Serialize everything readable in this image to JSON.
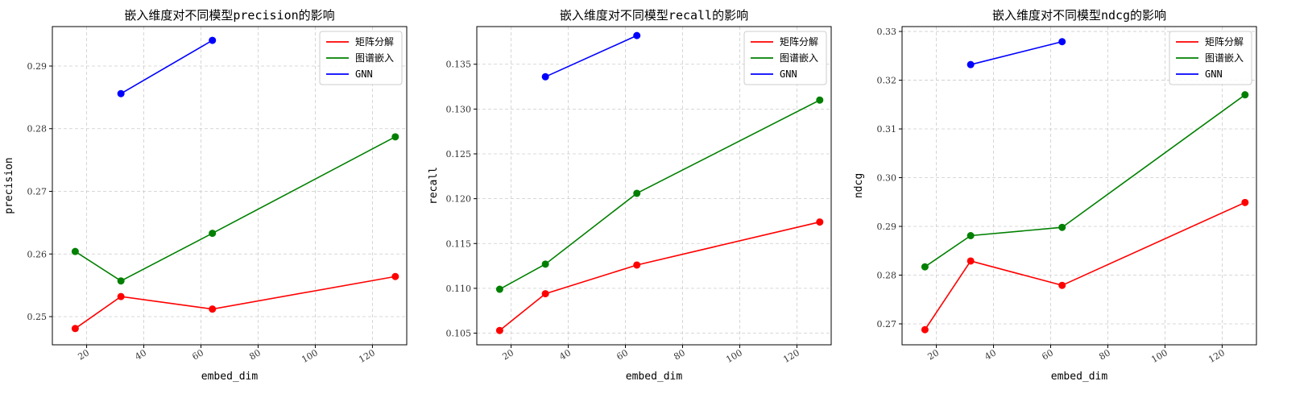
{
  "chart_data": [
    {
      "type": "line",
      "title": "嵌入维度对不同模型precision的影响",
      "xlabel": "embed_dim",
      "ylabel": "precision",
      "xlim": [
        8,
        132
      ],
      "ylim": [
        0.2455,
        0.2963
      ],
      "xticks": [
        20,
        40,
        60,
        80,
        100,
        120
      ],
      "xtick_labels": [
        "20",
        "40",
        "60",
        "80",
        "100",
        "120"
      ],
      "yticks": [
        0.25,
        0.26,
        0.27,
        0.28,
        0.29
      ],
      "ytick_labels": [
        "0.25",
        "0.26",
        "0.27",
        "0.28",
        "0.29"
      ],
      "grid": true,
      "legend": "top-right",
      "series": [
        {
          "name": "矩阵分解",
          "color": "#ff0000",
          "x": [
            16,
            32,
            64,
            128
          ],
          "y": [
            0.2481,
            0.2532,
            0.2512,
            0.2564
          ]
        },
        {
          "name": "图谱嵌入",
          "color": "#008000",
          "x": [
            16,
            32,
            64,
            128
          ],
          "y": [
            0.2604,
            0.2557,
            0.2633,
            0.2787
          ]
        },
        {
          "name": "GNN",
          "color": "#0000ff",
          "x": [
            32,
            64
          ],
          "y": [
            0.2856,
            0.2941
          ]
        }
      ]
    },
    {
      "type": "line",
      "title": "嵌入维度对不同模型recall的影响",
      "xlabel": "embed_dim",
      "ylabel": "recall",
      "xlim": [
        8,
        132
      ],
      "ylim": [
        0.1037,
        0.1392
      ],
      "xticks": [
        20,
        40,
        60,
        80,
        100,
        120
      ],
      "xtick_labels": [
        "20",
        "40",
        "60",
        "80",
        "100",
        "120"
      ],
      "yticks": [
        0.105,
        0.11,
        0.115,
        0.12,
        0.125,
        0.13,
        0.135
      ],
      "ytick_labels": [
        "0.105",
        "0.110",
        "0.115",
        "0.120",
        "0.125",
        "0.130",
        "0.135"
      ],
      "grid": true,
      "legend": "top-right",
      "series": [
        {
          "name": "矩阵分解",
          "color": "#ff0000",
          "x": [
            16,
            32,
            64,
            128
          ],
          "y": [
            0.1053,
            0.1094,
            0.1126,
            0.1174
          ]
        },
        {
          "name": "图谱嵌入",
          "color": "#008000",
          "x": [
            16,
            32,
            64,
            128
          ],
          "y": [
            0.1099,
            0.1127,
            0.1206,
            0.131
          ]
        },
        {
          "name": "GNN",
          "color": "#0000ff",
          "x": [
            32,
            64
          ],
          "y": [
            0.1336,
            0.1382
          ]
        }
      ]
    },
    {
      "type": "line",
      "title": "嵌入维度对不同模型ndcg的影响",
      "xlabel": "embed_dim",
      "ylabel": "ndcg",
      "xlim": [
        8,
        132
      ],
      "ylim": [
        0.2657,
        0.331
      ],
      "xticks": [
        20,
        40,
        60,
        80,
        100,
        120
      ],
      "xtick_labels": [
        "20",
        "40",
        "60",
        "80",
        "100",
        "120"
      ],
      "yticks": [
        0.27,
        0.28,
        0.29,
        0.3,
        0.31,
        0.32,
        0.33
      ],
      "ytick_labels": [
        "0.27",
        "0.28",
        "0.29",
        "0.30",
        "0.31",
        "0.32",
        "0.33"
      ],
      "grid": true,
      "legend": "top-right",
      "series": [
        {
          "name": "矩阵分解",
          "color": "#ff0000",
          "x": [
            16,
            32,
            64,
            128
          ],
          "y": [
            0.2688,
            0.2829,
            0.2779,
            0.2949
          ]
        },
        {
          "name": "图谱嵌入",
          "color": "#008000",
          "x": [
            16,
            32,
            64,
            128
          ],
          "y": [
            0.2817,
            0.2881,
            0.2898,
            0.317
          ]
        },
        {
          "name": "GNN",
          "color": "#0000ff",
          "x": [
            32,
            64
          ],
          "y": [
            0.3232,
            0.3279
          ]
        }
      ]
    }
  ]
}
